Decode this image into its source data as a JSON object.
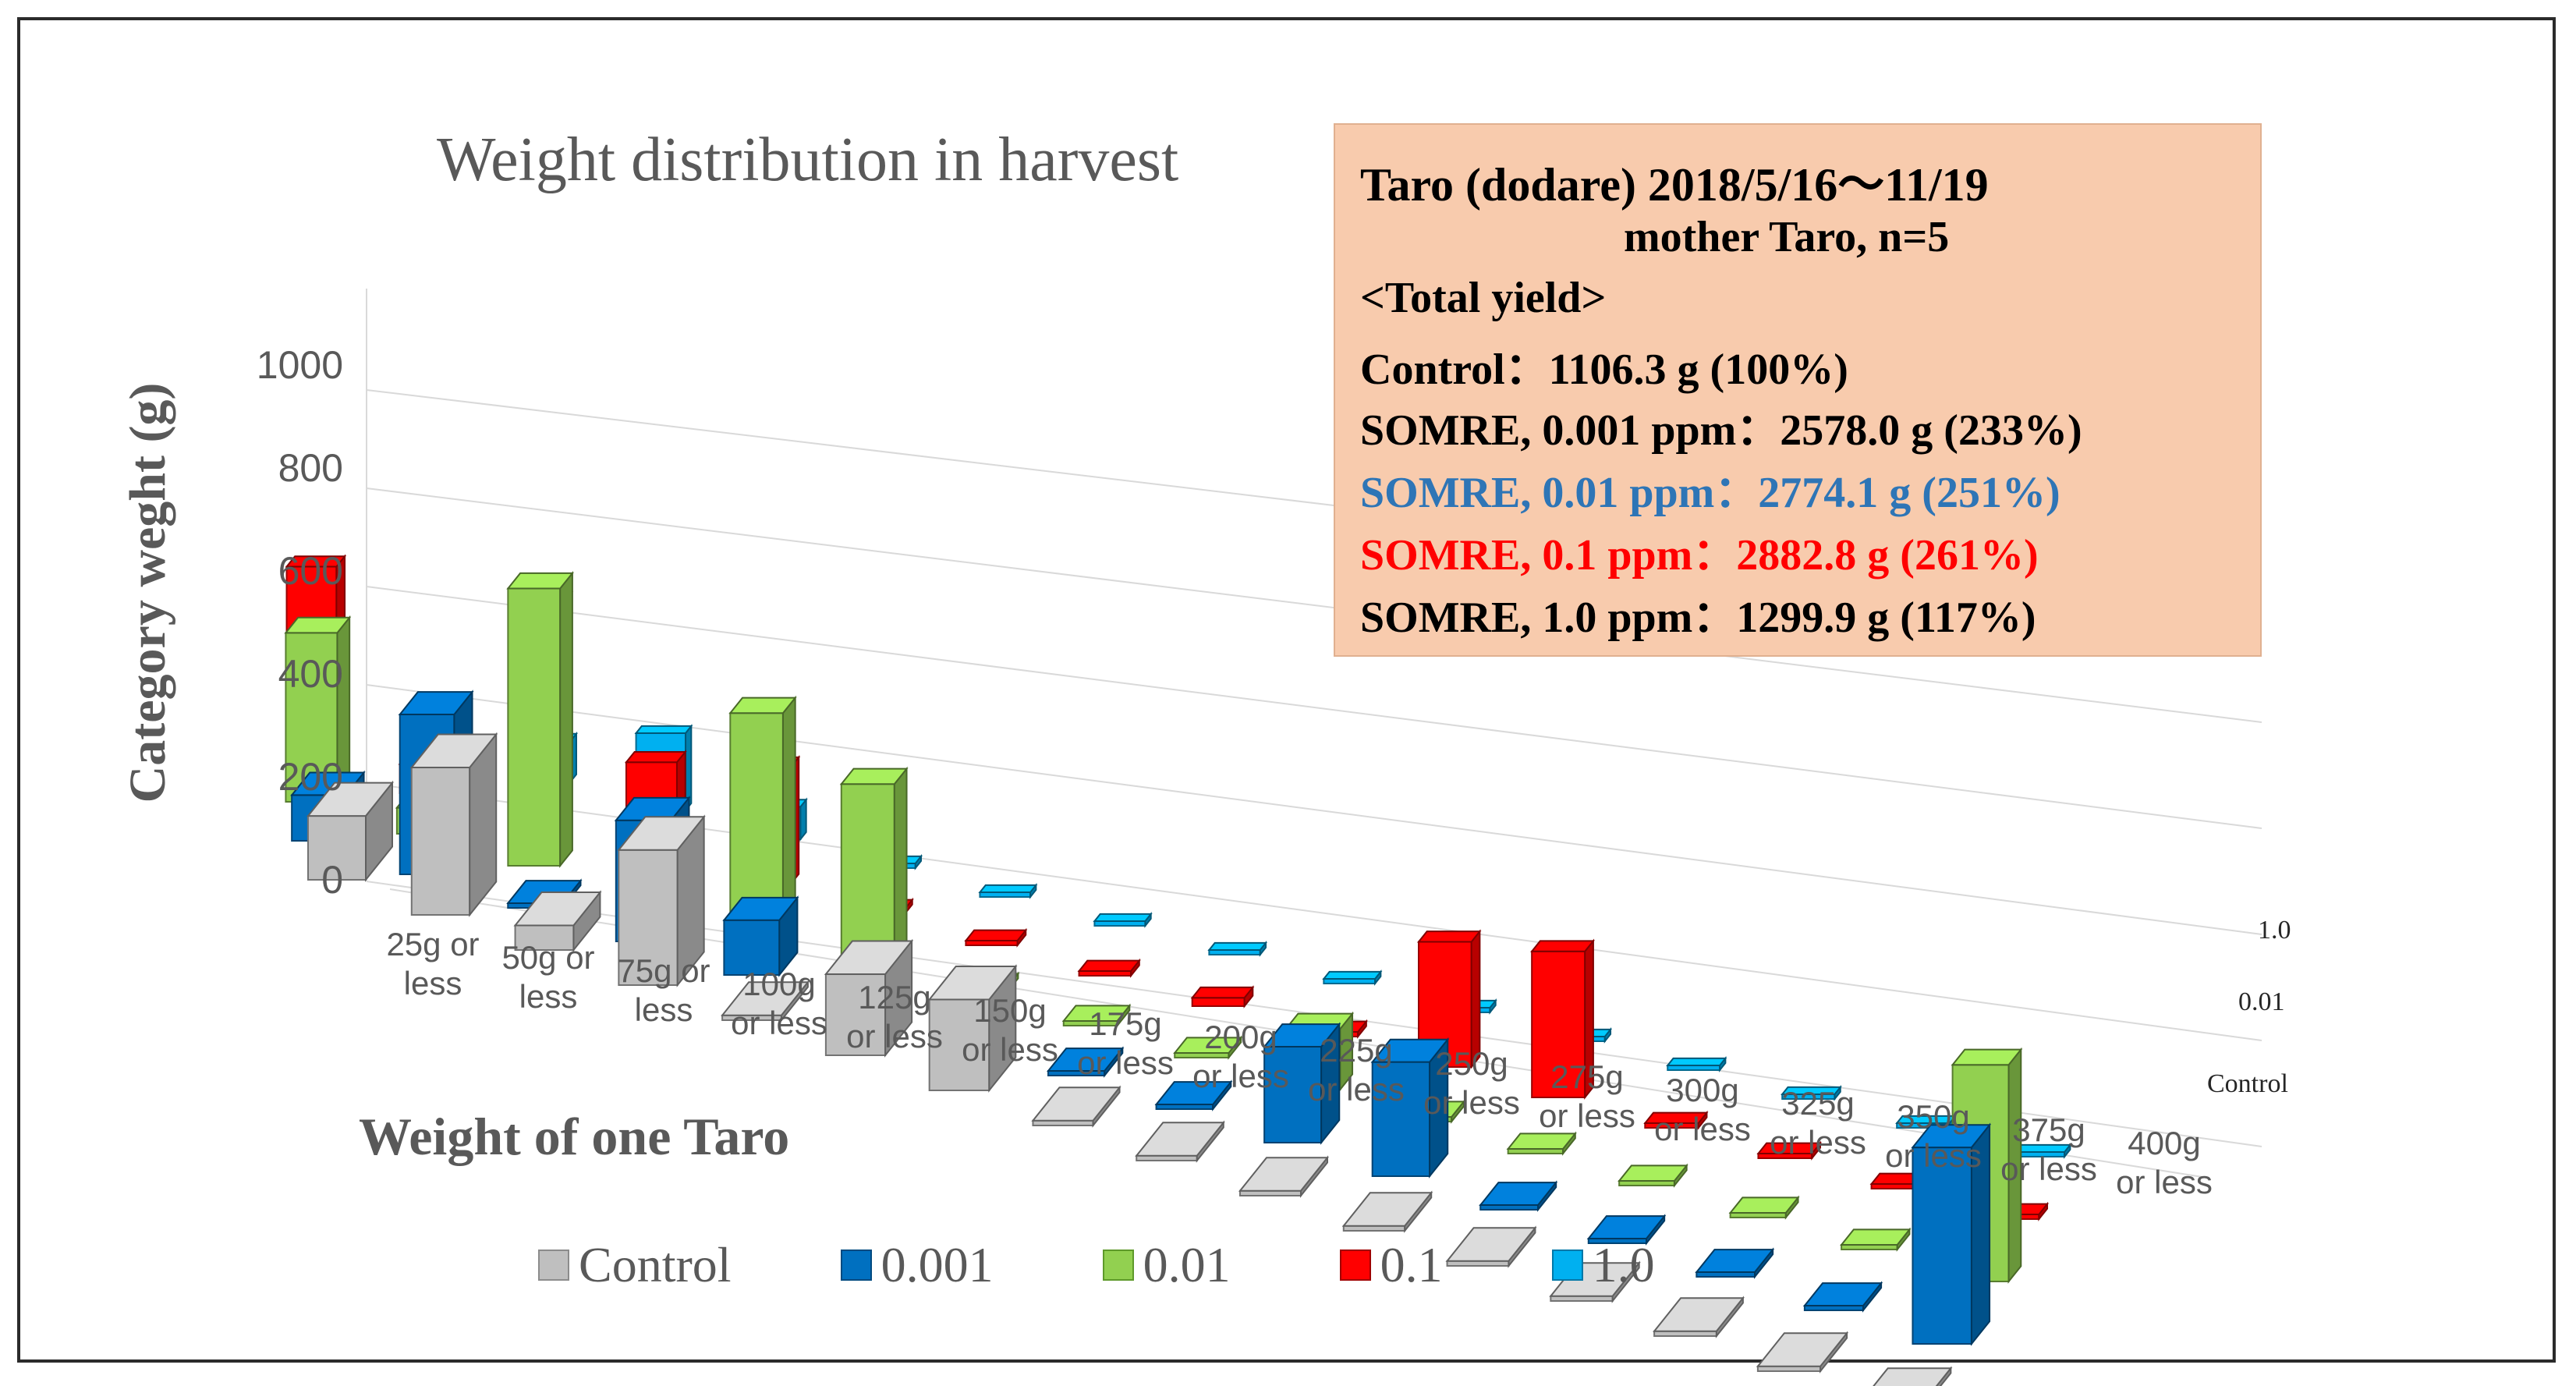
{
  "chart_data": {
    "type": "bar",
    "variant": "3d-column",
    "title": "Weight distribution in harvest",
    "xlabel": "Weight of one Taro",
    "ylabel": "Category weght (g)",
    "ylim": [
      0,
      1000
    ],
    "yticks": [
      "0",
      "200",
      "400",
      "600",
      "800",
      "1000"
    ],
    "categories": [
      [
        "25g or",
        "less"
      ],
      [
        "50g or",
        "less"
      ],
      [
        "75g or",
        "less"
      ],
      [
        "100g",
        "or less"
      ],
      [
        "125g",
        "or less"
      ],
      [
        "150g",
        "or less"
      ],
      [
        "175g",
        "or less"
      ],
      [
        "200g",
        "or less"
      ],
      [
        "225g",
        "or less"
      ],
      [
        "250g",
        "or less"
      ],
      [
        "275g",
        "or less"
      ],
      [
        "300g",
        "or less"
      ],
      [
        "325g",
        "or less"
      ],
      [
        "350g",
        "or less"
      ],
      [
        "375g",
        "or less"
      ],
      [
        "400g",
        "or less"
      ]
    ],
    "depth_labels": [
      "Control",
      "0.01",
      "1.0"
    ],
    "series": [
      {
        "name": "Control",
        "color": "#bfbfbf",
        "values": [
          130,
          300,
          50,
          275,
          10,
          165,
          185,
          10,
          10,
          10,
          10,
          10,
          10,
          10,
          10,
          10
        ]
      },
      {
        "name": "0.001",
        "color": "#0070c0",
        "values": [
          100,
          350,
          10,
          265,
          120,
          10,
          10,
          10,
          10,
          210,
          250,
          10,
          10,
          10,
          10,
          430
        ]
      },
      {
        "name": "0.01",
        "color": "#92d050",
        "values": [
          390,
          60,
          640,
          10,
          500,
          410,
          10,
          10,
          10,
          140,
          10,
          10,
          10,
          10,
          10,
          500
        ]
      },
      {
        "name": "0.1",
        "color": "#ff0000",
        "values": [
          470,
          70,
          530,
          220,
          280,
          10,
          10,
          10,
          20,
          10,
          300,
          350,
          10,
          10,
          10,
          10
        ]
      },
      {
        "name": "1.0",
        "color": "#00b0f0",
        "values": [
          60,
          80,
          100,
          190,
          80,
          10,
          10,
          10,
          10,
          10,
          10,
          10,
          10,
          10,
          10,
          10
        ]
      }
    ],
    "legend": [
      "Control",
      "0.001",
      "0.01",
      "0.1",
      "1.0"
    ],
    "legend_position": "bottom"
  },
  "info_box": {
    "line1": "Taro (dodare)   2018/5/16〜11/19",
    "line2": "mother Taro, n=5",
    "line3": "<Total yield>",
    "line4": "Control：1106.3 g (100%)",
    "line5": "SOMRE, 0.001 ppm：2578.0 g (233%)",
    "line6": "SOMRE, 0.01 ppm：2774.1 g (251%)",
    "line7": "SOMRE, 0.1 ppm：2882.8 g (261%)",
    "line8": "SOMRE, 1.0 ppm：1299.9 g (117%)",
    "colors": {
      "default": "#000000",
      "line6": "#2e75b6",
      "line7": "#ff0000",
      "background": "#f8cbad"
    }
  }
}
